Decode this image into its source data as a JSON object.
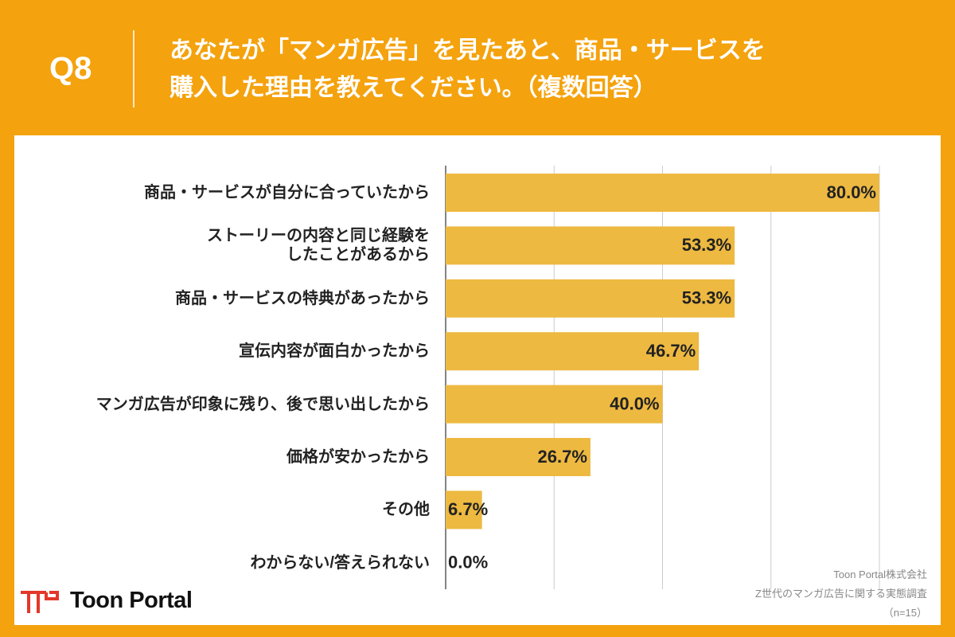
{
  "header": {
    "question": "Q8",
    "title": "あなたが「マンガ広告」を見たあと、商品・サービスを\n購入した理由を教えてください。（複数回答）"
  },
  "chart_data": {
    "type": "bar",
    "orientation": "horizontal",
    "categories": [
      "商品・サービスが自分に合っていたから",
      "ストーリーの内容と同じ経験を\nしたことがあるから",
      "商品・サービスの特典があったから",
      "宣伝内容が面白かったから",
      "マンガ広告が印象に残り、後で思い出したから",
      "価格が安かったから",
      "その他",
      "わからない/答えられない"
    ],
    "values": [
      80,
      53.3,
      53.3,
      46.7,
      40,
      26.7,
      6.7,
      0
    ],
    "value_labels": [
      "80.0%",
      "53.3%",
      "53.3%",
      "46.7%",
      "40.0%",
      "26.7%",
      "6.7%",
      "0.0%"
    ],
    "color": "#EDB941",
    "xlim": [
      0,
      80
    ],
    "xticks": [
      0,
      20,
      40,
      60,
      80
    ],
    "grid": true
  },
  "footer": {
    "logo": "Toon Portal",
    "source": [
      "Toon Portal株式会社",
      "Z世代のマンガ広告に関する実態調査",
      "（n=15）"
    ]
  }
}
